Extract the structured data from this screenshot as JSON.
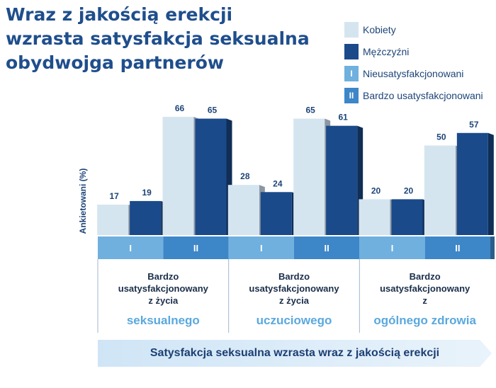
{
  "title_lines": [
    "Wraz z jakością erekcji",
    "wzrasta satysfakcja seksualna",
    "obydwojga partnerów"
  ],
  "legend": [
    {
      "swatch_label": "",
      "label": "Kobiety",
      "color": "#d5e5f0"
    },
    {
      "swatch_label": "",
      "label": "Mężczyźni",
      "color": "#1a4a8a"
    },
    {
      "swatch_label": "I",
      "label": "Nieusatysfakcjonowani",
      "color": "#6fb0df"
    },
    {
      "swatch_label": "II",
      "label": "Bardzo usatysfakcjonowani",
      "color": "#3d86c8"
    }
  ],
  "banner_text": "Satysfakcja seksualna wzrasta wraz z jakością erekcji",
  "colors": {
    "kobiety": "#d5e5f0",
    "mezczyzni": "#1a4a8a",
    "band_I": "#6fb0df",
    "band_II": "#3d86c8",
    "text": "#1d4478",
    "highlight": "#5aa8de"
  },
  "chart_data": {
    "type": "bar",
    "ylabel": "Ankietowani (%)",
    "ylim": [
      0,
      70
    ],
    "categories": [
      "I",
      "II",
      "I",
      "II",
      "I",
      "II"
    ],
    "series": [
      {
        "name": "Kobiety",
        "values": [
          17,
          66,
          28,
          65,
          20,
          50
        ]
      },
      {
        "name": "Mężczyźni",
        "values": [
          19,
          65,
          24,
          61,
          20,
          57
        ]
      }
    ],
    "groups": [
      {
        "lines": [
          "Bardzo",
          "usatysfakcjonowany",
          "z życia"
        ],
        "highlight": "seksualnego"
      },
      {
        "lines": [
          "Bardzo",
          "usatysfakcjonowany",
          "z życia"
        ],
        "highlight": "uczuciowego"
      },
      {
        "lines": [
          "Bardzo",
          "usatysfakcjonowany",
          "z"
        ],
        "highlight": "ogólnego zdrowia"
      }
    ]
  }
}
